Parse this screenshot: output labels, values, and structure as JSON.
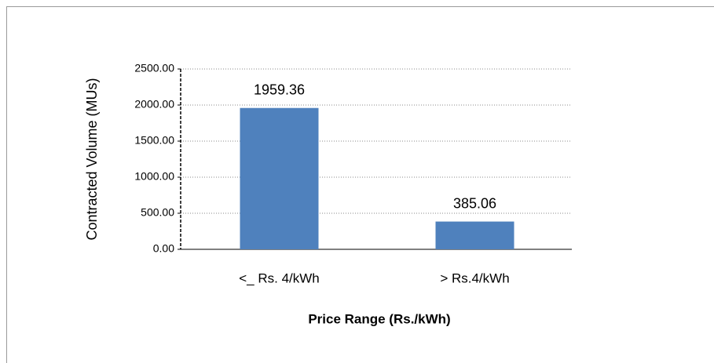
{
  "chart_data": {
    "type": "bar",
    "y_label": "Contracted Volume (MUs)",
    "x_label": "Price Range (Rs./kWh)",
    "categories": [
      "<_ Rs. 4/kWh",
      "> Rs.4/kWh"
    ],
    "values": [
      1959.36,
      385.06
    ],
    "color": "#4f81bd",
    "ylim": [
      0,
      2500
    ],
    "yticks": [
      {
        "value": 0,
        "label": "0.00"
      },
      {
        "value": 500,
        "label": "500.00"
      },
      {
        "value": 1000,
        "label": "1000.00"
      },
      {
        "value": 1500,
        "label": "1500.00"
      },
      {
        "value": 2000,
        "label": "2000.00"
      },
      {
        "value": 2500,
        "label": "2500.00"
      }
    ],
    "grid": true
  }
}
